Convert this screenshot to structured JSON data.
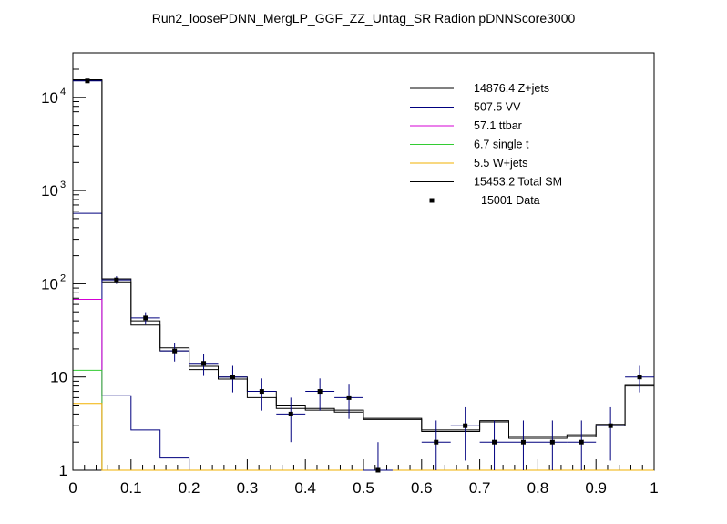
{
  "chart_data": {
    "type": "histogram",
    "title": "Run2_loosePDNN_MergLP_GGF_ZZ_Untag_SR Radion  pDNNScore3000",
    "xlabel": "",
    "ylabel": "",
    "xlim": [
      0,
      1
    ],
    "ylim": [
      1,
      30000
    ],
    "ylog": true,
    "grid": false,
    "legend_position": "top-right",
    "bin_edges": [
      0,
      0.05,
      0.1,
      0.15,
      0.2,
      0.25,
      0.3,
      0.35,
      0.4,
      0.45,
      0.5,
      0.55,
      0.6,
      0.65,
      0.7,
      0.75,
      0.8,
      0.85,
      0.9,
      0.95,
      1.0
    ],
    "x_ticks": [
      {
        "v": 0,
        "label": "0"
      },
      {
        "v": 0.1,
        "label": "0.1"
      },
      {
        "v": 0.2,
        "label": "0.2"
      },
      {
        "v": 0.3,
        "label": "0.3"
      },
      {
        "v": 0.4,
        "label": "0.4"
      },
      {
        "v": 0.5,
        "label": "0.5"
      },
      {
        "v": 0.6,
        "label": "0.6"
      },
      {
        "v": 0.7,
        "label": "0.7"
      },
      {
        "v": 0.8,
        "label": "0.8"
      },
      {
        "v": 0.9,
        "label": "0.9"
      },
      {
        "v": 1.0,
        "label": "1"
      }
    ],
    "y_ticks": [
      {
        "v": 1,
        "base": "1",
        "exp": ""
      },
      {
        "v": 10,
        "base": "10",
        "exp": ""
      },
      {
        "v": 100,
        "base": "10",
        "exp": "2"
      },
      {
        "v": 1000,
        "base": "10",
        "exp": "3"
      },
      {
        "v": 10000,
        "base": "10",
        "exp": "4"
      }
    ],
    "series": [
      {
        "name": "Z+jets",
        "yield": "14876.4",
        "color": "#000000",
        "values": [
          15100,
          105,
          36,
          19,
          12,
          9.5,
          6,
          4.6,
          4.4,
          4.2,
          3.5,
          3.5,
          2.6,
          2.6,
          3.3,
          2.2,
          2.2,
          2.3,
          3.0,
          8.0
        ]
      },
      {
        "name": "VV",
        "yield": "507.5",
        "color": "#00007f",
        "values": [
          570,
          6.3,
          2.7,
          1.35,
          0.9,
          0.9,
          0.9,
          0.9,
          0.9,
          0.9,
          0.9,
          0.9,
          0.9,
          0.9,
          0.9,
          0.9,
          0.9,
          0.9,
          0.9,
          0.9
        ]
      },
      {
        "name": "ttbar",
        "yield": "57.1",
        "color": "#d400d4",
        "values": [
          68,
          0.9,
          0.9,
          0.9,
          0.9,
          0.9,
          0.9,
          0.9,
          0.9,
          0.9,
          0.9,
          0.9,
          0.9,
          0.9,
          0.9,
          0.9,
          0.9,
          0.9,
          0.9,
          0.9
        ]
      },
      {
        "name": "single t",
        "yield": "6.7",
        "color": "#33cc33",
        "values": [
          11.8,
          0.9,
          0.9,
          0.9,
          0.9,
          0.9,
          0.9,
          0.9,
          0.9,
          0.9,
          0.9,
          0.9,
          0.9,
          0.9,
          0.9,
          0.9,
          0.9,
          0.9,
          0.9,
          0.9
        ]
      },
      {
        "name": "W+jets",
        "yield": "5.5",
        "color": "#f2b100",
        "values": [
          5.2,
          1.0,
          1.0,
          1.0,
          1.0,
          1.0,
          1.0,
          1.0,
          1.0,
          1.0,
          1.0,
          1.0,
          1.0,
          1.0,
          1.0,
          1.0,
          1.0,
          1.0,
          1.0,
          1.0
        ]
      },
      {
        "name": "Total SM",
        "yield": "15453.2",
        "color": "#000000",
        "values": [
          15453,
          113,
          40,
          20.5,
          13,
          10,
          7,
          5,
          4.6,
          4.4,
          3.6,
          3.6,
          2.7,
          2.7,
          3.4,
          2.3,
          2.3,
          2.4,
          3.1,
          8.3
        ]
      }
    ],
    "data_points": {
      "name": "Data",
      "yield": "15001",
      "x": [
        0.025,
        0.075,
        0.125,
        0.175,
        0.225,
        0.275,
        0.325,
        0.375,
        0.425,
        0.475,
        0.525,
        0.625,
        0.675,
        0.725,
        0.775,
        0.825,
        0.875,
        0.925,
        0.975
      ],
      "y": [
        15001,
        110,
        43,
        19,
        14,
        10,
        7,
        4,
        7,
        6,
        1,
        2,
        3,
        2,
        2,
        2,
        2,
        3,
        10
      ]
    }
  }
}
